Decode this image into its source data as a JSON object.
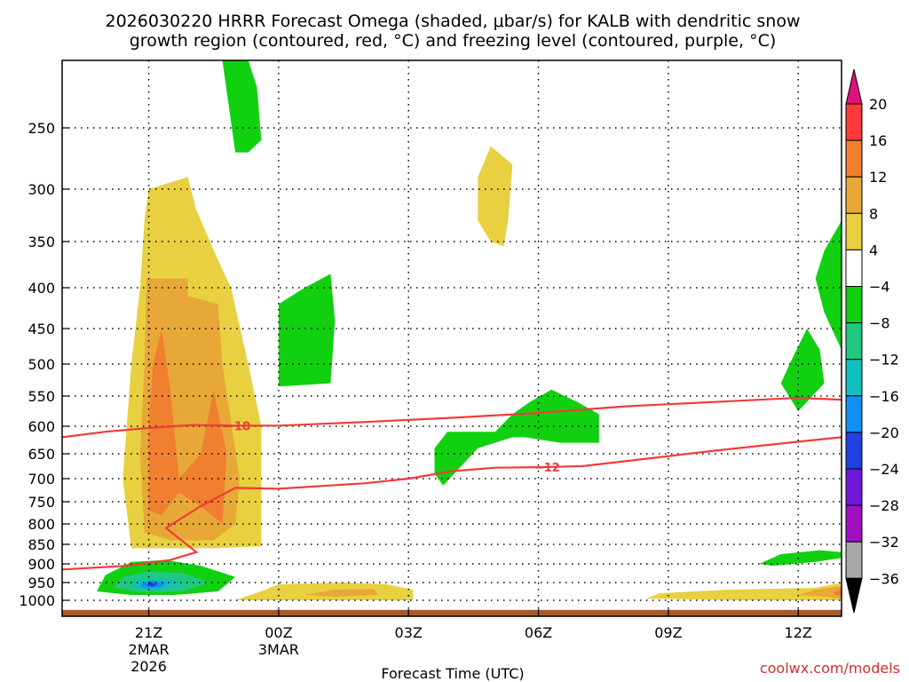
{
  "title_line1": "2026030220 HRRR Forecast Omega (shaded, μbar/s) for KALB with dendritic snow",
  "title_line2": "growth region (contoured, red, °C) and freezing level (contoured, purple, °C)",
  "xlabel": "Forecast Time (UTC)",
  "credit": "coolwx.com/models",
  "chart_data": {
    "type": "time-height cross section (filled contours)",
    "y_axis": {
      "quantity": "pressure (hPa)",
      "ticks": [
        250,
        300,
        350,
        400,
        450,
        500,
        550,
        600,
        650,
        700,
        750,
        800,
        850,
        900,
        950,
        1000
      ],
      "range": [
        1025,
        200
      ],
      "grid": "dotted"
    },
    "x_axis": {
      "quantity": "forecast time (UTC)",
      "range_hours_after_init": [
        -1,
        17
      ],
      "ticks": [
        {
          "hour": 1,
          "label": "21Z",
          "sub1": "2MAR",
          "sub2": "2026"
        },
        {
          "hour": 4,
          "label": "00Z",
          "sub1": "3MAR",
          "sub2": ""
        },
        {
          "hour": 7,
          "label": "03Z",
          "sub1": "",
          "sub2": ""
        },
        {
          "hour": 10,
          "label": "06Z",
          "sub1": "",
          "sub2": ""
        },
        {
          "hour": 13,
          "label": "09Z",
          "sub1": "",
          "sub2": ""
        },
        {
          "hour": 16,
          "label": "12Z",
          "sub1": "",
          "sub2": ""
        }
      ],
      "grid": "dotted"
    },
    "colorbar": {
      "levels": [
        "20",
        "16",
        "12",
        "8",
        "4",
        "−4",
        "−8",
        "−12",
        "−16",
        "−20",
        "−24",
        "−28",
        "−32",
        "−36"
      ],
      "colors": [
        "#ff3a3a",
        "#f08030",
        "#e8a838",
        "#e8d040",
        "#ffffff",
        "#10d010",
        "#20c880",
        "#10c0c0",
        "#1090f0",
        "#2040e0",
        "#7018d8",
        "#a010c0",
        "#a8a8a8"
      ],
      "top_triangle": "#e0107a",
      "bottom_triangle": "#000000"
    },
    "contours": [
      {
        "name": "-18",
        "label": "−18",
        "color": "#f03c3c",
        "points": [
          [
            -1,
            620
          ],
          [
            0,
            610
          ],
          [
            1,
            603
          ],
          [
            2,
            598
          ],
          [
            3,
            599
          ],
          [
            4,
            599
          ],
          [
            6,
            593
          ],
          [
            8,
            586
          ],
          [
            10,
            578
          ],
          [
            12,
            567
          ],
          [
            14,
            560
          ],
          [
            16,
            553
          ],
          [
            17,
            556
          ]
        ]
      },
      {
        "name": "-12",
        "label": "−12",
        "color": "#f03c3c",
        "points": [
          [
            -1,
            915
          ],
          [
            0.5,
            905
          ],
          [
            1.5,
            890
          ],
          [
            2.1,
            870
          ],
          [
            1.4,
            810
          ],
          [
            2.2,
            760
          ],
          [
            3.0,
            720
          ],
          [
            4,
            722
          ],
          [
            6,
            710
          ],
          [
            7,
            700
          ],
          [
            8,
            685
          ],
          [
            9,
            678
          ],
          [
            10,
            677
          ],
          [
            11,
            675
          ],
          [
            12,
            665
          ],
          [
            14,
            645
          ],
          [
            16,
            628
          ],
          [
            17,
            620
          ]
        ]
      }
    ],
    "shaded_regions": [
      {
        "category": "4 to 8",
        "color": "#e8d040",
        "outline": [
          [
            0.6,
            860
          ],
          [
            0.4,
            700
          ],
          [
            0.6,
            500
          ],
          [
            0.8,
            400
          ],
          [
            0.9,
            330
          ],
          [
            1.0,
            300
          ],
          [
            1.9,
            290
          ],
          [
            2.1,
            320
          ],
          [
            2.6,
            370
          ],
          [
            2.9,
            400
          ],
          [
            3.3,
            500
          ],
          [
            3.6,
            600
          ],
          [
            3.6,
            800
          ],
          [
            3.6,
            855
          ],
          [
            2.5,
            860
          ],
          [
            1.5,
            860
          ]
        ]
      },
      {
        "category": "8 to 12",
        "color": "#e8a838",
        "outline": [
          [
            0.9,
            820
          ],
          [
            0.8,
            650
          ],
          [
            0.9,
            500
          ],
          [
            0.95,
            390
          ],
          [
            1.9,
            390
          ],
          [
            1.9,
            410
          ],
          [
            2.6,
            420
          ],
          [
            2.7,
            500
          ],
          [
            3.1,
            700
          ],
          [
            3.0,
            800
          ],
          [
            2.5,
            840
          ],
          [
            1.5,
            840
          ]
        ]
      },
      {
        "category": "12 to 16",
        "color": "#f08030",
        "outline": [
          [
            1.0,
            770
          ],
          [
            1.0,
            600
          ],
          [
            1.1,
            500
          ],
          [
            1.3,
            450
          ],
          [
            1.5,
            540
          ],
          [
            1.7,
            700
          ],
          [
            2.2,
            650
          ],
          [
            2.5,
            540
          ],
          [
            2.8,
            650
          ],
          [
            2.7,
            800
          ],
          [
            2.2,
            760
          ],
          [
            1.7,
            730
          ],
          [
            1.3,
            780
          ]
        ]
      },
      {
        "category": "-8 to -4",
        "color": "#10d010",
        "outline": [
          [
            2.7,
            180
          ],
          [
            3.3,
            180
          ],
          [
            3.5,
            220
          ],
          [
            3.6,
            260
          ],
          [
            3.3,
            270
          ],
          [
            3.0,
            270
          ]
        ]
      },
      {
        "category": "4 to 8",
        "color": "#e8d040",
        "outline": [
          [
            8.6,
            290
          ],
          [
            8.9,
            265
          ],
          [
            9.4,
            280
          ],
          [
            9.3,
            330
          ],
          [
            9.2,
            355
          ],
          [
            8.9,
            350
          ],
          [
            8.6,
            330
          ]
        ]
      },
      {
        "category": "-8 to -4",
        "color": "#10d010",
        "outline": [
          [
            4.0,
            420
          ],
          [
            4.6,
            400
          ],
          [
            5.2,
            385
          ],
          [
            5.3,
            440
          ],
          [
            5.2,
            530
          ],
          [
            4.0,
            535
          ]
        ]
      },
      {
        "category": "-8 to -4",
        "color": "#10d010",
        "outline": [
          [
            9.0,
            610
          ],
          [
            9.4,
            580
          ],
          [
            9.8,
            560
          ],
          [
            10.3,
            540
          ],
          [
            10.9,
            560
          ],
          [
            11.4,
            580
          ],
          [
            11.4,
            630
          ],
          [
            10.5,
            630
          ],
          [
            9.7,
            620
          ],
          [
            9.4,
            620
          ],
          [
            8.6,
            640
          ],
          [
            7.8,
            715
          ],
          [
            7.6,
            690
          ],
          [
            7.6,
            640
          ],
          [
            7.9,
            610
          ]
        ]
      },
      {
        "category": "-8 to -4",
        "color": "#10d010",
        "outline": [
          [
            15.8,
            500
          ],
          [
            16.2,
            450
          ],
          [
            16.5,
            480
          ],
          [
            16.6,
            530
          ],
          [
            16.0,
            575
          ],
          [
            15.6,
            530
          ]
        ]
      },
      {
        "category": "-8 to -4",
        "color": "#10d010",
        "outline": [
          [
            17.0,
            330
          ],
          [
            17.0,
            480
          ],
          [
            16.6,
            430
          ],
          [
            16.4,
            390
          ],
          [
            16.6,
            360
          ]
        ]
      },
      {
        "category": "-8 to -4",
        "color": "#10d010",
        "outline": [
          [
            15.1,
            900
          ],
          [
            15.6,
            875
          ],
          [
            16.5,
            865
          ],
          [
            17.6,
            870
          ],
          [
            17.4,
            885
          ],
          [
            16.4,
            895
          ],
          [
            15.4,
            905
          ]
        ]
      },
      {
        "category": "-8 to -4",
        "color": "#10d010",
        "outline": [
          [
            -0.2,
            975
          ],
          [
            0.0,
            930
          ],
          [
            0.6,
            895
          ],
          [
            1.4,
            890
          ],
          [
            2.2,
            905
          ],
          [
            3.0,
            935
          ],
          [
            2.6,
            975
          ],
          [
            1.6,
            985
          ],
          [
            0.6,
            985
          ]
        ]
      },
      {
        "category": "-12 to -8",
        "color": "#20c880",
        "outline": [
          [
            0.2,
            965
          ],
          [
            0.4,
            935
          ],
          [
            1.0,
            920
          ],
          [
            1.8,
            925
          ],
          [
            2.4,
            950
          ],
          [
            1.8,
            975
          ],
          [
            0.8,
            978
          ]
        ]
      },
      {
        "category": "-16 to -12",
        "color": "#10c0c0",
        "outline": [
          [
            0.6,
            960
          ],
          [
            0.8,
            940
          ],
          [
            1.5,
            940
          ],
          [
            1.8,
            955
          ],
          [
            1.3,
            970
          ],
          [
            0.8,
            968
          ]
        ]
      },
      {
        "category": "-20 to -16",
        "color": "#1090f0",
        "outline": [
          [
            0.8,
            958
          ],
          [
            1.0,
            945
          ],
          [
            1.4,
            950
          ],
          [
            1.3,
            963
          ],
          [
            0.9,
            965
          ]
        ]
      },
      {
        "category": "-24 to -20",
        "color": "#2040e0",
        "outline": [
          [
            0.95,
            958
          ],
          [
            1.05,
            950
          ],
          [
            1.2,
            955
          ],
          [
            1.1,
            962
          ]
        ]
      },
      {
        "category": "4 to 8",
        "color": "#e8d040",
        "outline": [
          [
            3.0,
            1000
          ],
          [
            3.7,
            970
          ],
          [
            4.0,
            955
          ],
          [
            5.5,
            950
          ],
          [
            6.5,
            955
          ],
          [
            7.1,
            970
          ],
          [
            7.1,
            1000
          ]
        ]
      },
      {
        "category": "8 to 12",
        "color": "#e8a838",
        "outline": [
          [
            4.6,
            985
          ],
          [
            5.3,
            970
          ],
          [
            6.2,
            968
          ],
          [
            6.3,
            985
          ],
          [
            5.3,
            990
          ]
        ]
      },
      {
        "category": "4 to 8",
        "color": "#e8d040",
        "outline": [
          [
            12.5,
            995
          ],
          [
            12.8,
            980
          ],
          [
            14.4,
            970
          ],
          [
            16.4,
            965
          ],
          [
            17.5,
            950
          ],
          [
            17.5,
            1000
          ],
          [
            14.6,
            1000
          ]
        ]
      },
      {
        "category": "8 to 12",
        "color": "#e8a838",
        "outline": [
          [
            16.0,
            985
          ],
          [
            16.4,
            970
          ],
          [
            17.0,
            960
          ],
          [
            17.5,
            955
          ],
          [
            17.5,
            995
          ],
          [
            16.6,
            990
          ]
        ]
      },
      {
        "category": "12 to 16",
        "color": "#f08030",
        "outline": [
          [
            16.8,
            980
          ],
          [
            17.2,
            965
          ],
          [
            17.5,
            962
          ],
          [
            17.5,
            990
          ]
        ]
      }
    ],
    "ground": {
      "color": "#a55a2a",
      "pressure_top": 1015
    }
  }
}
